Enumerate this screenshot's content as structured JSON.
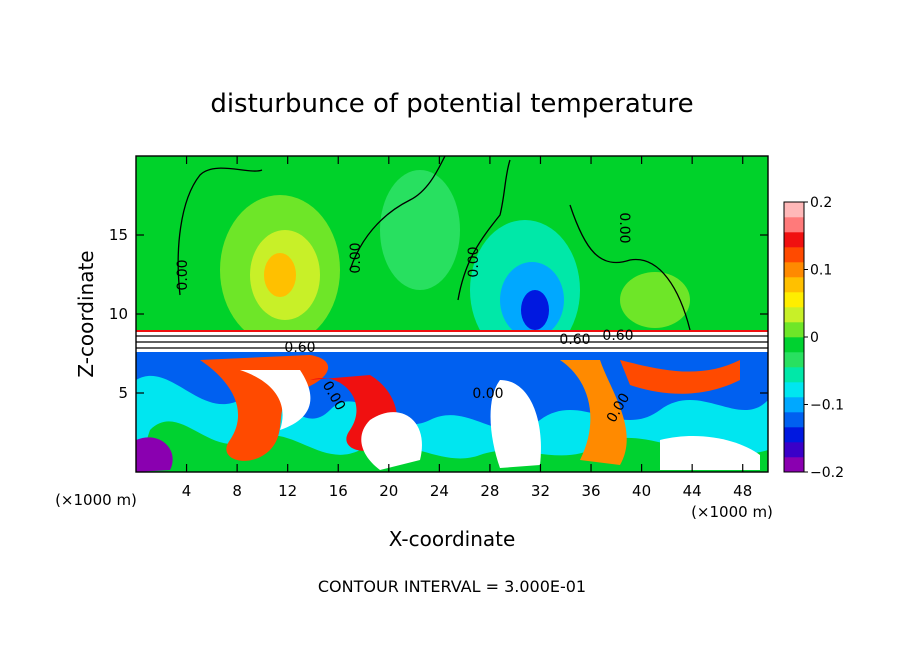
{
  "chart_data": {
    "type": "heatmap",
    "title": "disturbunce of potential temperature",
    "xlabel": "X-coordinate",
    "ylabel": "Z-coordinate",
    "x_unit_left": "(×1000 m)",
    "x_unit_right": "(×1000 m)",
    "xlim": [
      0,
      50
    ],
    "ylim": [
      0,
      20
    ],
    "x_ticks": [
      4,
      8,
      12,
      16,
      20,
      24,
      28,
      32,
      36,
      40,
      44,
      48
    ],
    "x_tick_labels": [
      "4",
      "8",
      "12",
      "16",
      "20",
      "24",
      "28",
      "32",
      "36",
      "40",
      "44",
      "48"
    ],
    "y_ticks": [
      5,
      10,
      15
    ],
    "y_tick_labels": [
      "5",
      "10",
      "15"
    ],
    "colorbar": {
      "range": [
        -0.2,
        0.2
      ],
      "ticks": [
        -0.2,
        -0.1,
        0,
        0.1,
        0.2
      ],
      "tick_labels": [
        "−0.2",
        "−0.1",
        "0",
        "0.1",
        "0.2"
      ],
      "colors": [
        "#8a00b0",
        "#3a00c8",
        "#0018e0",
        "#0060f0",
        "#00a8ff",
        "#00e6f0",
        "#00e8a8",
        "#28e060",
        "#00d230",
        "#6ee628",
        "#c8f028",
        "#ffee00",
        "#ffc000",
        "#ff8a00",
        "#ff4a00",
        "#f01010",
        "#ff7a7a",
        "#ffb8b8"
      ]
    },
    "contour_labels": [
      "0.00",
      "0.00",
      "0.00",
      "0.00",
      "0.00",
      "0.60",
      "0.60",
      "0.60",
      "0.00",
      "0.00"
    ],
    "footer": "CONTOUR INTERVAL = 3.000E-01",
    "grid": false
  },
  "colors": {
    "background": "#00d22a",
    "inversion_band": "#ffffff",
    "contour": "#000000"
  }
}
